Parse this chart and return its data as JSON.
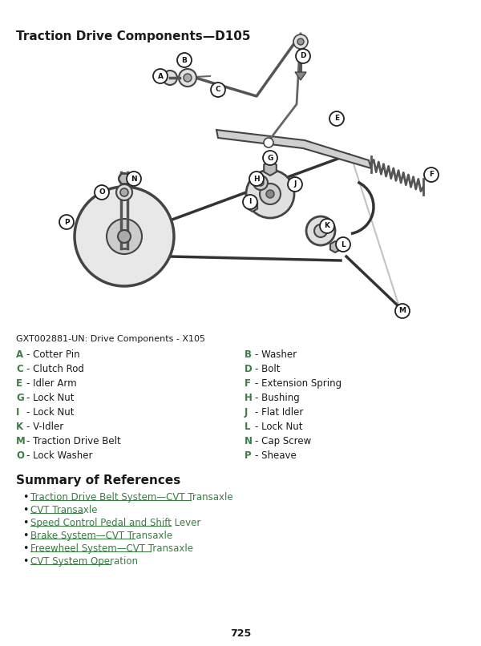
{
  "title": "Traction Drive Components—D105",
  "image_caption": "GXT002881-UN: Drive Components - X105",
  "bg_color": "#ffffff",
  "title_fontsize": 11,
  "caption_fontsize": 8,
  "label_fontsize": 8.5,
  "green_color": "#3a7d44",
  "black_color": "#1a1a1a",
  "link_color": "#3a7d44",
  "parts_left": [
    [
      "A",
      "Cotter Pin"
    ],
    [
      "C",
      "Clutch Rod"
    ],
    [
      "E",
      "Idler Arm"
    ],
    [
      "G",
      "Lock Nut"
    ],
    [
      "I",
      "Lock Nut"
    ],
    [
      "K",
      "V-Idler"
    ],
    [
      "M",
      "Traction Drive Belt"
    ],
    [
      "O",
      "Lock Washer"
    ]
  ],
  "parts_right": [
    [
      "B",
      "Washer"
    ],
    [
      "D",
      "Bolt"
    ],
    [
      "F",
      "Extension Spring"
    ],
    [
      "H",
      "Bushing"
    ],
    [
      "J",
      "Flat Idler"
    ],
    [
      "L",
      "Lock Nut"
    ],
    [
      "N",
      "Cap Screw"
    ],
    [
      "P",
      "Sheave"
    ]
  ],
  "summary_title": "Summary of References",
  "summary_links": [
    "Traction Drive Belt System—CVT Transaxle",
    "CVT Transaxle",
    "Speed Control Pedal and Shift Lever",
    "Brake System—CVT Transaxle",
    "Freewheel System—CVT Transaxle",
    "CVT System Operation"
  ],
  "page_number": "725"
}
